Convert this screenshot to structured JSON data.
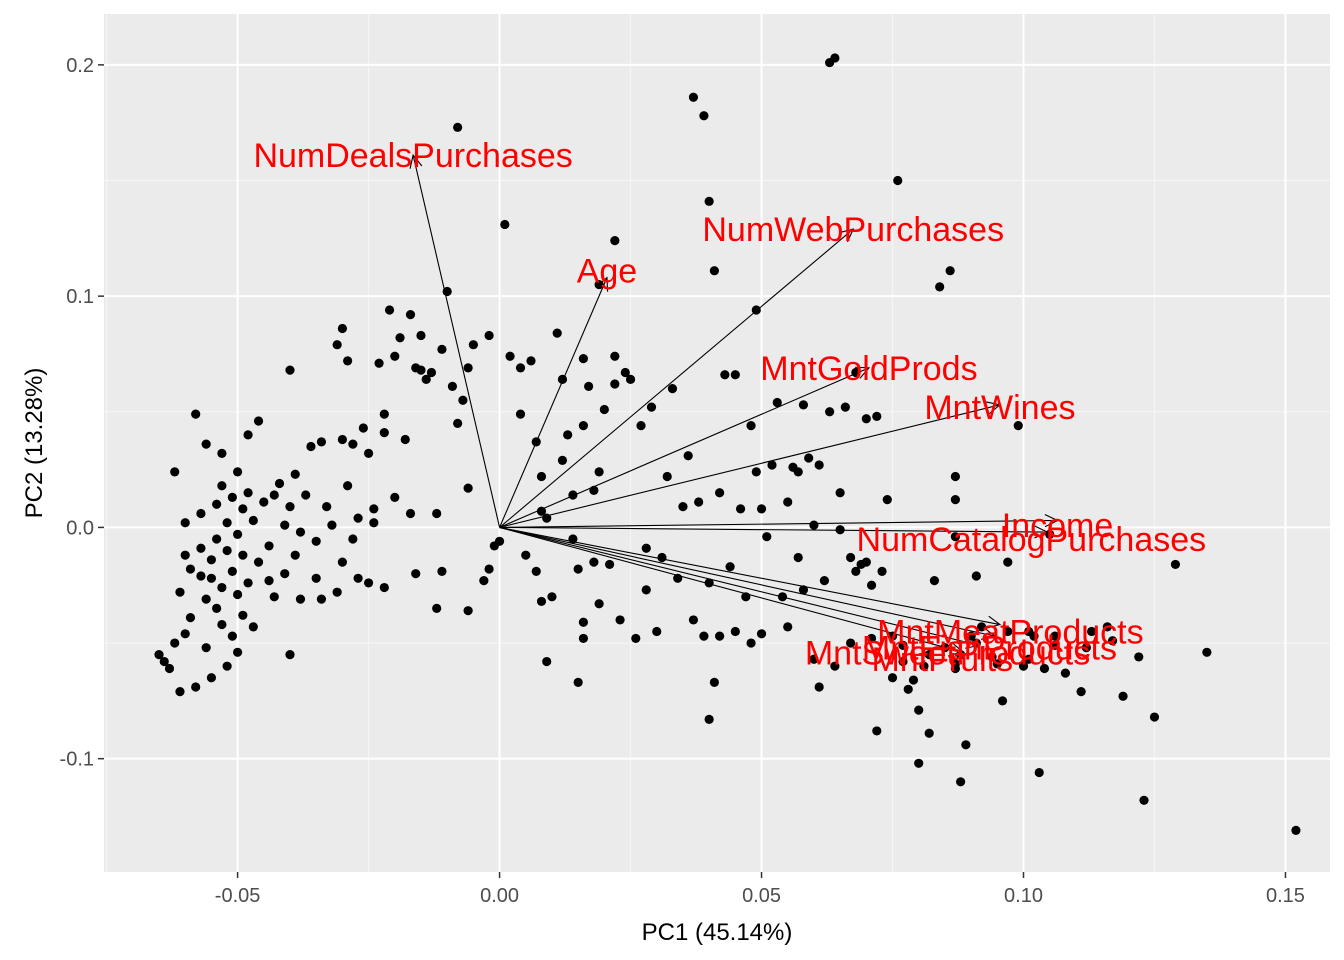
{
  "chart_data": {
    "type": "scatter",
    "title": "",
    "xlabel": "PC1 (45.14%)",
    "ylabel": "PC2 (13.28%)",
    "xlim": [
      -0.0755,
      0.1585
    ],
    "ylim": [
      -0.149,
      0.222
    ],
    "x_ticks": [
      -0.05,
      0.0,
      0.05,
      0.1,
      0.15
    ],
    "x_tick_labels": [
      "-0.05",
      "0.00",
      "0.05",
      "0.10",
      "0.15"
    ],
    "y_ticks": [
      -0.1,
      0.0,
      0.1,
      0.2
    ],
    "y_tick_labels": [
      "-0.1",
      "0.0",
      "0.1",
      "0.2"
    ],
    "grid": true,
    "colors": {
      "panel": "#ebebeb",
      "grid_major": "#ffffff",
      "grid_minor": "#f5f5f5",
      "points": "#000000",
      "arrows": "#000000",
      "loading_labels": "#ff0000"
    },
    "points": [
      [
        -0.065,
        -0.055
      ],
      [
        -0.064,
        -0.058
      ],
      [
        -0.063,
        -0.061
      ],
      [
        -0.062,
        -0.05
      ],
      [
        -0.061,
        -0.071
      ],
      [
        -0.06,
        -0.046
      ],
      [
        -0.06,
        -0.012
      ],
      [
        -0.061,
        -0.028
      ],
      [
        -0.062,
        0.024
      ],
      [
        -0.06,
        0.002
      ],
      [
        -0.059,
        -0.018
      ],
      [
        -0.059,
        -0.039
      ],
      [
        -0.058,
        -0.069
      ],
      [
        -0.058,
        0.049
      ],
      [
        -0.057,
        -0.021
      ],
      [
        -0.057,
        0.006
      ],
      [
        -0.057,
        -0.009
      ],
      [
        -0.056,
        -0.031
      ],
      [
        -0.056,
        -0.052
      ],
      [
        -0.056,
        0.036
      ],
      [
        -0.055,
        -0.022
      ],
      [
        -0.055,
        -0.014
      ],
      [
        -0.055,
        -0.065
      ],
      [
        -0.054,
        0.01
      ],
      [
        -0.054,
        -0.005
      ],
      [
        -0.054,
        -0.035
      ],
      [
        -0.053,
        0.018
      ],
      [
        -0.053,
        -0.026
      ],
      [
        -0.053,
        -0.042
      ],
      [
        -0.053,
        0.032
      ],
      [
        -0.052,
        -0.06
      ],
      [
        -0.052,
        -0.01
      ],
      [
        -0.052,
        0.002
      ],
      [
        -0.051,
        -0.019
      ],
      [
        -0.051,
        -0.047
      ],
      [
        -0.051,
        0.013
      ],
      [
        -0.05,
        -0.029
      ],
      [
        -0.05,
        0.024
      ],
      [
        -0.05,
        -0.054
      ],
      [
        -0.05,
        -0.003
      ],
      [
        -0.049,
        -0.012
      ],
      [
        -0.049,
        0.008
      ],
      [
        -0.049,
        -0.038
      ],
      [
        -0.048,
        0.04
      ],
      [
        -0.048,
        -0.024
      ],
      [
        -0.048,
        0.015
      ],
      [
        -0.047,
        -0.043
      ],
      [
        -0.047,
        0.003
      ],
      [
        -0.046,
        0.046
      ],
      [
        -0.046,
        -0.015
      ],
      [
        -0.045,
        0.011
      ],
      [
        -0.044,
        -0.023
      ],
      [
        -0.044,
        -0.008
      ],
      [
        -0.043,
        0.014
      ],
      [
        -0.043,
        -0.03
      ],
      [
        -0.042,
        0.019
      ],
      [
        -0.041,
        -0.02
      ],
      [
        -0.041,
        0.001
      ],
      [
        -0.04,
        -0.055
      ],
      [
        -0.04,
        0.068
      ],
      [
        -0.04,
        0.009
      ],
      [
        -0.039,
        -0.012
      ],
      [
        -0.039,
        0.023
      ],
      [
        -0.038,
        -0.002
      ],
      [
        -0.038,
        -0.031
      ],
      [
        -0.037,
        0.014
      ],
      [
        -0.036,
        0.035
      ],
      [
        -0.035,
        -0.006
      ],
      [
        -0.035,
        -0.022
      ],
      [
        -0.034,
        0.037
      ],
      [
        -0.034,
        -0.031
      ],
      [
        -0.033,
        0.009
      ],
      [
        -0.032,
        0.001
      ],
      [
        -0.031,
        0.079
      ],
      [
        -0.031,
        -0.028
      ],
      [
        -0.03,
        0.086
      ],
      [
        -0.03,
        0.038
      ],
      [
        -0.03,
        -0.015
      ],
      [
        -0.029,
        0.072
      ],
      [
        -0.029,
        0.018
      ],
      [
        -0.028,
        -0.005
      ],
      [
        -0.028,
        0.036
      ],
      [
        -0.027,
        0.004
      ],
      [
        -0.027,
        -0.022
      ],
      [
        -0.026,
        0.043
      ],
      [
        -0.025,
        0.032
      ],
      [
        -0.025,
        -0.024
      ],
      [
        -0.024,
        0.008
      ],
      [
        -0.024,
        0.002
      ],
      [
        -0.023,
        0.071
      ],
      [
        -0.022,
        0.049
      ],
      [
        -0.022,
        0.041
      ],
      [
        -0.022,
        -0.026
      ],
      [
        -0.021,
        0.094
      ],
      [
        -0.02,
        0.074
      ],
      [
        -0.02,
        0.013
      ],
      [
        -0.019,
        0.082
      ],
      [
        -0.018,
        0.038
      ],
      [
        -0.017,
        0.092
      ],
      [
        -0.017,
        0.006
      ],
      [
        -0.016,
        0.069
      ],
      [
        -0.016,
        -0.02
      ],
      [
        -0.015,
        0.068
      ],
      [
        -0.015,
        0.083
      ],
      [
        -0.014,
        0.064
      ],
      [
        -0.013,
        0.067
      ],
      [
        -0.012,
        0.006
      ],
      [
        -0.012,
        -0.035
      ],
      [
        -0.011,
        0.077
      ],
      [
        -0.011,
        -0.019
      ],
      [
        -0.01,
        0.102
      ],
      [
        -0.009,
        0.061
      ],
      [
        -0.008,
        0.045
      ],
      [
        -0.008,
        0.173
      ],
      [
        -0.007,
        0.055
      ],
      [
        -0.006,
        0.069
      ],
      [
        -0.006,
        0.017
      ],
      [
        -0.006,
        -0.036
      ],
      [
        -0.005,
        0.079
      ],
      [
        -0.003,
        -0.023
      ],
      [
        -0.002,
        -0.018
      ],
      [
        -0.002,
        0.083
      ],
      [
        -0.001,
        -0.008
      ],
      [
        0.0,
        -0.006
      ],
      [
        0.001,
        0.131
      ],
      [
        0.002,
        0.074
      ],
      [
        0.004,
        0.049
      ],
      [
        0.004,
        0.069
      ],
      [
        0.005,
        -0.012
      ],
      [
        0.006,
        0.072
      ],
      [
        0.007,
        0.037
      ],
      [
        0.007,
        -0.019
      ],
      [
        0.008,
        0.007
      ],
      [
        0.008,
        0.022
      ],
      [
        0.008,
        -0.032
      ],
      [
        0.009,
        -0.058
      ],
      [
        0.009,
        0.004
      ],
      [
        0.01,
        -0.03
      ],
      [
        0.011,
        0.084
      ],
      [
        0.012,
        0.029
      ],
      [
        0.012,
        0.064
      ],
      [
        0.013,
        0.04
      ],
      [
        0.014,
        0.014
      ],
      [
        0.014,
        -0.005
      ],
      [
        0.015,
        -0.018
      ],
      [
        0.015,
        -0.067
      ],
      [
        0.016,
        -0.041
      ],
      [
        0.016,
        0.044
      ],
      [
        0.016,
        0.073
      ],
      [
        0.016,
        -0.048
      ],
      [
        0.017,
        0.061
      ],
      [
        0.018,
        0.016
      ],
      [
        0.018,
        -0.015
      ],
      [
        0.019,
        0.024
      ],
      [
        0.019,
        0.105
      ],
      [
        0.019,
        -0.033
      ],
      [
        0.02,
        0.051
      ],
      [
        0.021,
        -0.016
      ],
      [
        0.022,
        0.062
      ],
      [
        0.022,
        0.074
      ],
      [
        0.022,
        0.124
      ],
      [
        0.023,
        -0.04
      ],
      [
        0.024,
        0.067
      ],
      [
        0.025,
        0.064
      ],
      [
        0.026,
        -0.048
      ],
      [
        0.027,
        0.044
      ],
      [
        0.028,
        -0.027
      ],
      [
        0.028,
        -0.009
      ],
      [
        0.029,
        0.052
      ],
      [
        0.03,
        -0.045
      ],
      [
        0.031,
        -0.013
      ],
      [
        0.032,
        0.022
      ],
      [
        0.033,
        0.06
      ],
      [
        0.034,
        -0.022
      ],
      [
        0.035,
        0.009
      ],
      [
        0.036,
        0.031
      ],
      [
        0.037,
        -0.04
      ],
      [
        0.037,
        0.186
      ],
      [
        0.038,
        0.011
      ],
      [
        0.039,
        -0.047
      ],
      [
        0.039,
        0.178
      ],
      [
        0.04,
        -0.024
      ],
      [
        0.04,
        -0.083
      ],
      [
        0.04,
        0.141
      ],
      [
        0.041,
        -0.067
      ],
      [
        0.041,
        0.111
      ],
      [
        0.042,
        -0.047
      ],
      [
        0.042,
        0.015
      ],
      [
        0.043,
        0.066
      ],
      [
        0.044,
        -0.017
      ],
      [
        0.045,
        -0.045
      ],
      [
        0.045,
        0.066
      ],
      [
        0.046,
        0.008
      ],
      [
        0.047,
        -0.03
      ],
      [
        0.048,
        0.044
      ],
      [
        0.048,
        -0.05
      ],
      [
        0.049,
        0.094
      ],
      [
        0.049,
        0.024
      ],
      [
        0.05,
        0.008
      ],
      [
        0.05,
        -0.046
      ],
      [
        0.051,
        -0.004
      ],
      [
        0.052,
        0.027
      ],
      [
        0.053,
        0.054
      ],
      [
        0.054,
        -0.03
      ],
      [
        0.055,
        -0.043
      ],
      [
        0.055,
        0.011
      ],
      [
        0.056,
        0.026
      ],
      [
        0.057,
        0.024
      ],
      [
        0.057,
        -0.013
      ],
      [
        0.058,
        0.053
      ],
      [
        0.058,
        -0.027
      ],
      [
        0.059,
        0.03
      ],
      [
        0.06,
        -0.057
      ],
      [
        0.06,
        0.001
      ],
      [
        0.061,
        -0.069
      ],
      [
        0.061,
        0.027
      ],
      [
        0.062,
        -0.023
      ],
      [
        0.063,
        0.201
      ],
      [
        0.063,
        0.05
      ],
      [
        0.064,
        0.203
      ],
      [
        0.064,
        -0.06
      ],
      [
        0.065,
        0.015
      ],
      [
        0.065,
        -0.001
      ],
      [
        0.066,
        0.052
      ],
      [
        0.067,
        -0.05
      ],
      [
        0.067,
        -0.013
      ],
      [
        0.068,
        -0.019
      ],
      [
        0.068,
        0.067
      ],
      [
        0.069,
        -0.016
      ],
      [
        0.07,
        0.047
      ],
      [
        0.07,
        -0.015
      ],
      [
        0.071,
        -0.025
      ],
      [
        0.071,
        -0.048
      ],
      [
        0.072,
        0.048
      ],
      [
        0.072,
        -0.088
      ],
      [
        0.073,
        -0.019
      ],
      [
        0.074,
        0.012
      ],
      [
        0.075,
        -0.047
      ],
      [
        0.075,
        -0.065
      ],
      [
        0.076,
        0.15
      ],
      [
        0.077,
        -0.051
      ],
      [
        0.077,
        -0.058
      ],
      [
        0.078,
        -0.07
      ],
      [
        0.079,
        -0.066
      ],
      [
        0.08,
        -0.079
      ],
      [
        0.08,
        -0.102
      ],
      [
        0.081,
        -0.06
      ],
      [
        0.082,
        -0.089
      ],
      [
        0.082,
        -0.055
      ],
      [
        0.083,
        -0.023
      ],
      [
        0.084,
        0.104
      ],
      [
        0.085,
        -0.052
      ],
      [
        0.086,
        0.111
      ],
      [
        0.087,
        -0.061
      ],
      [
        0.087,
        -0.059
      ],
      [
        0.087,
        0.022
      ],
      [
        0.087,
        0.012
      ],
      [
        0.087,
        -0.004
      ],
      [
        0.088,
        -0.11
      ],
      [
        0.088,
        -0.055
      ],
      [
        0.089,
        -0.094
      ],
      [
        0.09,
        -0.047
      ],
      [
        0.091,
        -0.05
      ],
      [
        0.091,
        -0.021
      ],
      [
        0.092,
        -0.043
      ],
      [
        0.094,
        -0.056
      ],
      [
        0.095,
        -0.059
      ],
      [
        0.096,
        -0.075
      ],
      [
        0.097,
        -0.015
      ],
      [
        0.097,
        -0.045
      ],
      [
        0.099,
        0.044
      ],
      [
        0.1,
        -0.06
      ],
      [
        0.101,
        -0.057
      ],
      [
        0.101,
        -0.045
      ],
      [
        0.102,
        -0.047
      ],
      [
        0.103,
        -0.106
      ],
      [
        0.104,
        -0.061
      ],
      [
        0.105,
        -0.003
      ],
      [
        0.106,
        -0.047
      ],
      [
        0.106,
        -0.051
      ],
      [
        0.108,
        -0.063
      ],
      [
        0.111,
        -0.071
      ],
      [
        0.112,
        -0.052
      ],
      [
        0.113,
        -0.045
      ],
      [
        0.116,
        -0.043
      ],
      [
        0.117,
        -0.049
      ],
      [
        0.119,
        -0.073
      ],
      [
        0.122,
        -0.056
      ],
      [
        0.123,
        -0.118
      ],
      [
        0.125,
        -0.082
      ],
      [
        0.129,
        -0.016
      ],
      [
        0.135,
        -0.054
      ],
      [
        0.152,
        -0.131
      ]
    ],
    "loadings": [
      {
        "name": "NumDealsPurchases",
        "x": -0.0165,
        "y": 0.161
      },
      {
        "name": "Age",
        "x": 0.0205,
        "y": 0.108
      },
      {
        "name": "NumWebPurchases",
        "x": 0.0675,
        "y": 0.129
      },
      {
        "name": "MntGoldProds",
        "x": 0.0705,
        "y": 0.069
      },
      {
        "name": "MntWines",
        "x": 0.0955,
        "y": 0.053
      },
      {
        "name": "Income",
        "x": 0.1065,
        "y": 0.003
      },
      {
        "name": "NumCatalogPurchases",
        "x": 0.1045,
        "y": -0.002
      },
      {
        "name": "MntMeatProducts",
        "x": 0.0955,
        "y": -0.042
      },
      {
        "name": "MntFishProducts",
        "x": 0.0945,
        "y": -0.047
      },
      {
        "name": "MntSweetProducts",
        "x": 0.0915,
        "y": -0.051
      },
      {
        "name": "MntFruits",
        "x": 0.0885,
        "y": -0.054
      }
    ],
    "loading_label_positions": [
      {
        "name": "NumDealsPurchases",
        "x": -0.0165,
        "y": 0.161
      },
      {
        "name": "Age",
        "x": 0.0205,
        "y": 0.111
      },
      {
        "name": "NumWebPurchases",
        "x": 0.0675,
        "y": 0.129
      },
      {
        "name": "MntGoldProds",
        "x": 0.0705,
        "y": 0.069
      },
      {
        "name": "MntWines",
        "x": 0.0955,
        "y": 0.052
      },
      {
        "name": "Income",
        "x": 0.1065,
        "y": 0.001
      },
      {
        "name": "NumCatalogPurchases",
        "x": 0.1015,
        "y": -0.005
      },
      {
        "name": "MntMeatProducts",
        "x": 0.0975,
        "y": -0.045
      },
      {
        "name": "MntFishProducts",
        "x": 0.0935,
        "y": -0.052
      },
      {
        "name": "MntSweetProducts",
        "x": 0.0855,
        "y": -0.054
      },
      {
        "name": "MntFruits",
        "x": 0.0845,
        "y": -0.057
      }
    ]
  }
}
